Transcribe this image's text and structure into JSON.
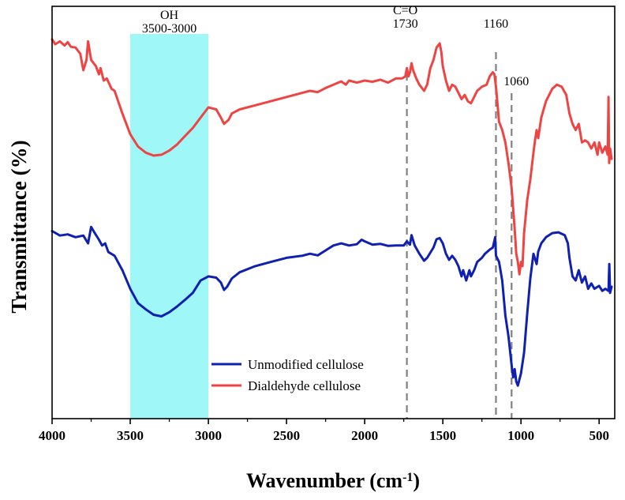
{
  "chart_data": {
    "type": "line",
    "xlabel": "Wavenumber (cm",
    "xlabel_sup": "-1",
    "xlabel_end": ")",
    "ylabel": "Transmittance (%)",
    "xlim": [
      4000,
      400
    ],
    "x_reversed": true,
    "xticks": [
      4000,
      3500,
      3000,
      2500,
      2000,
      1500,
      1000,
      500
    ],
    "y_ticks_shown": false,
    "grid": false,
    "legend_position": "bottom-center",
    "highlight_band": {
      "x_from": 3500,
      "x_to": 3000,
      "color": "#9ff7f7",
      "label_line1": "OH",
      "label_line2": "3500-3000"
    },
    "reference_lines": [
      {
        "x": 1730,
        "label_line1": "C=O",
        "label_line2": "1730"
      },
      {
        "x": 1160,
        "label_line1": "1160",
        "label_line2": ""
      },
      {
        "x": 1060,
        "label_line1": "1060",
        "label_line2": ""
      }
    ],
    "series": [
      {
        "name": "Unmodified cellulose",
        "color": "#1020b0",
        "points": [
          [
            4000,
            0.545
          ],
          [
            3950,
            0.556
          ],
          [
            3900,
            0.553
          ],
          [
            3850,
            0.56
          ],
          [
            3800,
            0.556
          ],
          [
            3770,
            0.575
          ],
          [
            3750,
            0.535
          ],
          [
            3730,
            0.548
          ],
          [
            3700,
            0.566
          ],
          [
            3680,
            0.58
          ],
          [
            3660,
            0.575
          ],
          [
            3640,
            0.596
          ],
          [
            3600,
            0.605
          ],
          [
            3550,
            0.64
          ],
          [
            3500,
            0.685
          ],
          [
            3450,
            0.72
          ],
          [
            3400,
            0.735
          ],
          [
            3350,
            0.748
          ],
          [
            3300,
            0.752
          ],
          [
            3250,
            0.742
          ],
          [
            3200,
            0.728
          ],
          [
            3150,
            0.712
          ],
          [
            3100,
            0.695
          ],
          [
            3050,
            0.665
          ],
          [
            3000,
            0.655
          ],
          [
            2950,
            0.658
          ],
          [
            2920,
            0.67
          ],
          [
            2900,
            0.688
          ],
          [
            2880,
            0.68
          ],
          [
            2850,
            0.66
          ],
          [
            2800,
            0.645
          ],
          [
            2700,
            0.63
          ],
          [
            2600,
            0.62
          ],
          [
            2500,
            0.61
          ],
          [
            2400,
            0.605
          ],
          [
            2350,
            0.6
          ],
          [
            2300,
            0.604
          ],
          [
            2250,
            0.592
          ],
          [
            2200,
            0.58
          ],
          [
            2150,
            0.575
          ],
          [
            2100,
            0.58
          ],
          [
            2050,
            0.577
          ],
          [
            2020,
            0.566
          ],
          [
            2000,
            0.57
          ],
          [
            1950,
            0.578
          ],
          [
            1900,
            0.576
          ],
          [
            1850,
            0.581
          ],
          [
            1800,
            0.58
          ],
          [
            1750,
            0.58
          ],
          [
            1730,
            0.57
          ],
          [
            1710,
            0.578
          ],
          [
            1700,
            0.555
          ],
          [
            1680,
            0.58
          ],
          [
            1650,
            0.6
          ],
          [
            1620,
            0.617
          ],
          [
            1600,
            0.61
          ],
          [
            1560,
            0.585
          ],
          [
            1540,
            0.565
          ],
          [
            1520,
            0.562
          ],
          [
            1500,
            0.575
          ],
          [
            1480,
            0.6
          ],
          [
            1460,
            0.615
          ],
          [
            1440,
            0.605
          ],
          [
            1420,
            0.615
          ],
          [
            1400,
            0.63
          ],
          [
            1380,
            0.655
          ],
          [
            1370,
            0.64
          ],
          [
            1350,
            0.665
          ],
          [
            1330,
            0.64
          ],
          [
            1320,
            0.655
          ],
          [
            1300,
            0.64
          ],
          [
            1280,
            0.62
          ],
          [
            1250,
            0.61
          ],
          [
            1230,
            0.6
          ],
          [
            1200,
            0.59
          ],
          [
            1180,
            0.585
          ],
          [
            1165,
            0.56
          ],
          [
            1160,
            0.605
          ],
          [
            1140,
            0.62
          ],
          [
            1120,
            0.665
          ],
          [
            1100,
            0.75
          ],
          [
            1080,
            0.8
          ],
          [
            1060,
            0.87
          ],
          [
            1050,
            0.9
          ],
          [
            1040,
            0.88
          ],
          [
            1030,
            0.91
          ],
          [
            1020,
            0.92
          ],
          [
            1000,
            0.89
          ],
          [
            980,
            0.84
          ],
          [
            960,
            0.745
          ],
          [
            940,
            0.66
          ],
          [
            920,
            0.6
          ],
          [
            900,
            0.625
          ],
          [
            890,
            0.595
          ],
          [
            870,
            0.575
          ],
          [
            840,
            0.56
          ],
          [
            800,
            0.55
          ],
          [
            760,
            0.548
          ],
          [
            720,
            0.555
          ],
          [
            700,
            0.575
          ],
          [
            690,
            0.61
          ],
          [
            670,
            0.655
          ],
          [
            650,
            0.665
          ],
          [
            630,
            0.64
          ],
          [
            610,
            0.67
          ],
          [
            590,
            0.655
          ],
          [
            570,
            0.685
          ],
          [
            550,
            0.672
          ],
          [
            530,
            0.685
          ],
          [
            500,
            0.678
          ],
          [
            480,
            0.69
          ],
          [
            460,
            0.685
          ],
          [
            440,
            0.69
          ],
          [
            435,
            0.625
          ],
          [
            430,
            0.695
          ],
          [
            420,
            0.68
          ]
        ]
      },
      {
        "name": "Dialdehyde cellulose",
        "color": "#ee4444",
        "points": [
          [
            4000,
            0.08
          ],
          [
            3980,
            0.092
          ],
          [
            3950,
            0.085
          ],
          [
            3920,
            0.095
          ],
          [
            3900,
            0.087
          ],
          [
            3880,
            0.098
          ],
          [
            3850,
            0.1
          ],
          [
            3820,
            0.115
          ],
          [
            3800,
            0.155
          ],
          [
            3780,
            0.13
          ],
          [
            3770,
            0.085
          ],
          [
            3750,
            0.13
          ],
          [
            3720,
            0.145
          ],
          [
            3700,
            0.165
          ],
          [
            3690,
            0.15
          ],
          [
            3670,
            0.18
          ],
          [
            3650,
            0.175
          ],
          [
            3620,
            0.2
          ],
          [
            3600,
            0.205
          ],
          [
            3550,
            0.26
          ],
          [
            3500,
            0.31
          ],
          [
            3450,
            0.34
          ],
          [
            3400,
            0.355
          ],
          [
            3350,
            0.362
          ],
          [
            3300,
            0.36
          ],
          [
            3250,
            0.35
          ],
          [
            3200,
            0.335
          ],
          [
            3150,
            0.315
          ],
          [
            3100,
            0.295
          ],
          [
            3050,
            0.27
          ],
          [
            3000,
            0.245
          ],
          [
            2950,
            0.25
          ],
          [
            2920,
            0.27
          ],
          [
            2900,
            0.285
          ],
          [
            2870,
            0.275
          ],
          [
            2850,
            0.26
          ],
          [
            2800,
            0.25
          ],
          [
            2700,
            0.24
          ],
          [
            2600,
            0.23
          ],
          [
            2500,
            0.22
          ],
          [
            2400,
            0.21
          ],
          [
            2350,
            0.205
          ],
          [
            2300,
            0.208
          ],
          [
            2250,
            0.198
          ],
          [
            2200,
            0.19
          ],
          [
            2150,
            0.182
          ],
          [
            2120,
            0.19
          ],
          [
            2100,
            0.18
          ],
          [
            2050,
            0.185
          ],
          [
            2000,
            0.18
          ],
          [
            1950,
            0.183
          ],
          [
            1900,
            0.178
          ],
          [
            1850,
            0.185
          ],
          [
            1800,
            0.175
          ],
          [
            1760,
            0.175
          ],
          [
            1740,
            0.17
          ],
          [
            1730,
            0.15
          ],
          [
            1720,
            0.17
          ],
          [
            1710,
            0.16
          ],
          [
            1700,
            0.138
          ],
          [
            1690,
            0.155
          ],
          [
            1670,
            0.175
          ],
          [
            1650,
            0.19
          ],
          [
            1620,
            0.205
          ],
          [
            1600,
            0.19
          ],
          [
            1580,
            0.15
          ],
          [
            1560,
            0.13
          ],
          [
            1540,
            0.1
          ],
          [
            1520,
            0.09
          ],
          [
            1510,
            0.11
          ],
          [
            1500,
            0.145
          ],
          [
            1480,
            0.18
          ],
          [
            1460,
            0.205
          ],
          [
            1440,
            0.19
          ],
          [
            1420,
            0.195
          ],
          [
            1400,
            0.21
          ],
          [
            1380,
            0.225
          ],
          [
            1360,
            0.215
          ],
          [
            1340,
            0.23
          ],
          [
            1320,
            0.235
          ],
          [
            1300,
            0.22
          ],
          [
            1280,
            0.205
          ],
          [
            1250,
            0.195
          ],
          [
            1220,
            0.19
          ],
          [
            1200,
            0.17
          ],
          [
            1180,
            0.16
          ],
          [
            1170,
            0.165
          ],
          [
            1160,
            0.195
          ],
          [
            1140,
            0.28
          ],
          [
            1120,
            0.3
          ],
          [
            1100,
            0.33
          ],
          [
            1080,
            0.38
          ],
          [
            1060,
            0.44
          ],
          [
            1040,
            0.54
          ],
          [
            1030,
            0.6
          ],
          [
            1020,
            0.62
          ],
          [
            1010,
            0.65
          ],
          [
            1000,
            0.62
          ],
          [
            990,
            0.63
          ],
          [
            980,
            0.55
          ],
          [
            960,
            0.47
          ],
          [
            940,
            0.42
          ],
          [
            920,
            0.355
          ],
          [
            910,
            0.325
          ],
          [
            900,
            0.3
          ],
          [
            890,
            0.32
          ],
          [
            870,
            0.27
          ],
          [
            840,
            0.23
          ],
          [
            800,
            0.2
          ],
          [
            770,
            0.19
          ],
          [
            740,
            0.195
          ],
          [
            710,
            0.215
          ],
          [
            690,
            0.26
          ],
          [
            670,
            0.285
          ],
          [
            650,
            0.3
          ],
          [
            630,
            0.285
          ],
          [
            610,
            0.33
          ],
          [
            590,
            0.325
          ],
          [
            570,
            0.33
          ],
          [
            550,
            0.345
          ],
          [
            530,
            0.33
          ],
          [
            510,
            0.36
          ],
          [
            500,
            0.33
          ],
          [
            480,
            0.355
          ],
          [
            460,
            0.34
          ],
          [
            445,
            0.36
          ],
          [
            440,
            0.22
          ],
          [
            436,
            0.38
          ],
          [
            430,
            0.345
          ],
          [
            420,
            0.37
          ]
        ]
      }
    ]
  }
}
